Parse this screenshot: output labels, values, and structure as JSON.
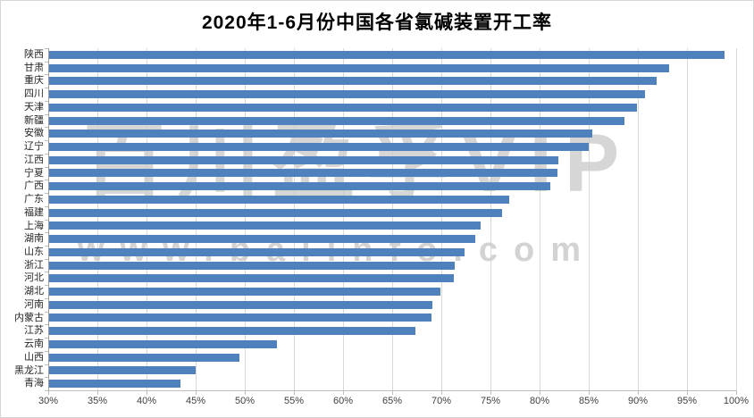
{
  "title": "2020年1-6月份中国各省氯碱装置开工率",
  "watermark": {
    "line1": "百川盈孚VIP",
    "line2": "www.baiinfo.com"
  },
  "colors": {
    "bar": "#4f81bd",
    "gridline": "#d9d9d9",
    "axis": "#9e9e9e",
    "watermark": "#c9c9c9"
  },
  "chart_data": {
    "type": "bar",
    "orientation": "horizontal",
    "title": "2020年1-6月份中国各省氯碱装置开工率",
    "xlabel": "",
    "ylabel": "",
    "xlim": [
      30,
      100
    ],
    "tick_step": 5,
    "x_ticks": [
      "30%",
      "35%",
      "40%",
      "45%",
      "50%",
      "55%",
      "60%",
      "65%",
      "70%",
      "75%",
      "80%",
      "85%",
      "90%",
      "95%",
      "100%"
    ],
    "grid": true,
    "legend": false,
    "unit": "%",
    "categories": [
      "陕西",
      "甘肃",
      "重庆",
      "四川",
      "天津",
      "新疆",
      "安徽",
      "辽宁",
      "江西",
      "宁夏",
      "广西",
      "广东",
      "福建",
      "上海",
      "湖南",
      "山东",
      "浙江",
      "河北",
      "湖北",
      "河南",
      "内蒙古",
      "江苏",
      "云南",
      "山西",
      "黑龙江",
      "青海"
    ],
    "values": [
      98.7,
      93.1,
      91.8,
      90.6,
      89.8,
      88.5,
      85.3,
      84.9,
      81.8,
      81.7,
      81.0,
      76.8,
      76.1,
      73.9,
      73.4,
      72.3,
      71.3,
      71.2,
      69.8,
      69.0,
      68.9,
      67.3,
      53.2,
      49.4,
      44.9,
      43.4
    ]
  }
}
